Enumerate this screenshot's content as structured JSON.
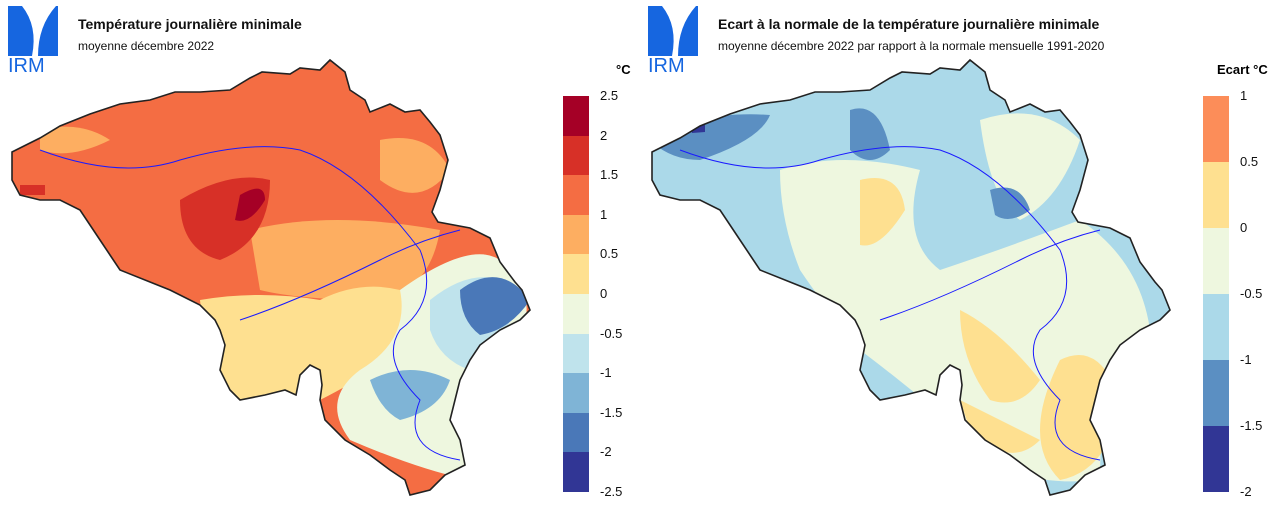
{
  "left": {
    "logo_text": "IRM",
    "title": "Température journalière minimale",
    "subtitle": "moyenne décembre 2022",
    "unit": "°C",
    "legend": {
      "ticks": [
        "2.5",
        "2",
        "1.5",
        "1",
        "0.5",
        "0",
        "-0.5",
        "-1",
        "-1.5",
        "-2",
        "-2.5"
      ],
      "colors": [
        "#a50026",
        "#d73027",
        "#f46d43",
        "#fdae61",
        "#fee090",
        "#eef7df",
        "#bfe3ec",
        "#7fb4d6",
        "#4a78b8",
        "#313695"
      ]
    }
  },
  "right": {
    "logo_text": "IRM",
    "title": "Ecart à la normale de la température journalière minimale",
    "subtitle": "moyenne décembre 2022 par rapport à la normale mensuelle 1991-2020",
    "unit": "Ecart °C",
    "legend": {
      "ticks": [
        "1",
        "0.5",
        "0",
        "-0.5",
        "-1",
        "-1.5",
        "-2"
      ],
      "colors": [
        "#fc8d59",
        "#fee090",
        "#eef7df",
        "#abd9e9",
        "#5b8fc2",
        "#313695"
      ]
    }
  }
}
